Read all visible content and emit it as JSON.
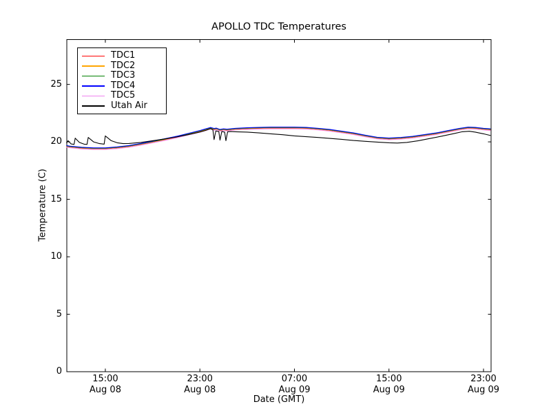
{
  "chart_data": {
    "type": "line",
    "title": "APOLLO TDC Temperatures",
    "xlabel": "Date (GMT)",
    "ylabel": "Temperature (C)",
    "grid": false,
    "legend_position": "upper left",
    "background_color": "#ffffff",
    "axis_color": "#000000",
    "x_unit": "hours since Aug 08 12:00 GMT",
    "xlim": [
      -0.26,
      35.64
    ],
    "ylim": [
      0,
      28.9
    ],
    "y_ticks": [
      0,
      5,
      10,
      15,
      20,
      25
    ],
    "x_ticks": [
      {
        "pos": 3,
        "time": "15:00",
        "date": "Aug 08"
      },
      {
        "pos": 11,
        "time": "23:00",
        "date": "Aug 08"
      },
      {
        "pos": 19,
        "time": "07:00",
        "date": "Aug 09"
      },
      {
        "pos": 27,
        "time": "15:00",
        "date": "Aug 09"
      },
      {
        "pos": 35,
        "time": "23:00",
        "date": "Aug 09"
      }
    ],
    "x": [
      -0.3,
      0,
      1,
      2,
      3,
      4,
      5,
      6,
      7,
      8,
      9,
      10,
      11,
      11.5,
      11.9,
      12.2,
      12.4,
      12.7,
      13,
      13.3,
      14,
      15,
      16,
      17,
      18,
      19,
      20,
      21,
      22,
      23,
      24,
      25,
      26,
      27,
      28,
      29,
      30,
      31,
      32,
      33,
      33.7,
      34.3,
      35,
      35.6
    ],
    "series": [
      {
        "name": "TDC1",
        "color": "#ff0000",
        "values": [
          19.6,
          19.55,
          19.45,
          19.4,
          19.4,
          19.48,
          19.6,
          19.78,
          19.98,
          20.18,
          20.4,
          20.65,
          20.9,
          21.05,
          21.18,
          21.08,
          21.12,
          21.0,
          21.05,
          21.02,
          21.1,
          21.15,
          21.18,
          21.2,
          21.2,
          21.2,
          21.18,
          21.1,
          21.0,
          20.85,
          20.7,
          20.5,
          20.32,
          20.25,
          20.3,
          20.4,
          20.55,
          20.7,
          20.9,
          21.1,
          21.2,
          21.18,
          21.1,
          21.05
        ]
      },
      {
        "name": "TDC2",
        "color": "#ffa500",
        "values": [
          19.62,
          19.57,
          19.47,
          19.42,
          19.42,
          19.5,
          19.62,
          19.8,
          20.0,
          20.2,
          20.42,
          20.67,
          20.92,
          21.07,
          21.2,
          21.1,
          21.14,
          21.02,
          21.07,
          21.04,
          21.12,
          21.17,
          21.2,
          21.22,
          21.22,
          21.22,
          21.2,
          21.12,
          21.02,
          20.87,
          20.72,
          20.52,
          20.34,
          20.27,
          20.32,
          20.42,
          20.57,
          20.72,
          20.92,
          21.12,
          21.22,
          21.2,
          21.12,
          21.07
        ]
      },
      {
        "name": "TDC3",
        "color": "#008000",
        "values": [
          19.65,
          19.6,
          19.5,
          19.45,
          19.45,
          19.53,
          19.65,
          19.83,
          20.03,
          20.23,
          20.45,
          20.7,
          20.95,
          21.1,
          21.23,
          21.13,
          21.17,
          21.05,
          21.1,
          21.07,
          21.15,
          21.2,
          21.23,
          21.25,
          21.25,
          21.25,
          21.23,
          21.15,
          21.05,
          20.9,
          20.75,
          20.55,
          20.37,
          20.3,
          20.35,
          20.45,
          20.6,
          20.75,
          20.95,
          21.15,
          21.25,
          21.23,
          21.15,
          21.1
        ]
      },
      {
        "name": "TDC4",
        "color": "#0000ff",
        "values": [
          19.68,
          19.63,
          19.53,
          19.48,
          19.48,
          19.56,
          19.68,
          19.86,
          20.06,
          20.26,
          20.48,
          20.73,
          20.98,
          21.13,
          21.26,
          21.16,
          21.2,
          21.08,
          21.13,
          21.1,
          21.18,
          21.23,
          21.26,
          21.28,
          21.28,
          21.28,
          21.26,
          21.18,
          21.08,
          20.93,
          20.78,
          20.58,
          20.4,
          20.33,
          20.38,
          20.48,
          20.63,
          20.78,
          20.98,
          21.18,
          21.28,
          21.26,
          21.18,
          21.13
        ]
      },
      {
        "name": "TDC5",
        "color": "#ee82ee",
        "values": [
          19.54,
          19.49,
          19.39,
          19.34,
          19.34,
          19.42,
          19.54,
          19.72,
          19.92,
          20.12,
          20.34,
          20.59,
          20.84,
          20.99,
          21.12,
          21.02,
          21.06,
          20.94,
          20.99,
          20.96,
          21.04,
          21.09,
          21.12,
          21.14,
          21.14,
          21.14,
          21.12,
          21.04,
          20.94,
          20.79,
          20.64,
          20.44,
          20.26,
          20.19,
          20.24,
          20.34,
          20.49,
          20.64,
          20.84,
          21.04,
          21.14,
          21.12,
          21.04,
          20.99
        ]
      },
      {
        "name": "Utah Air",
        "color": "#000000",
        "x": [
          -0.3,
          -0.15,
          0.1,
          0.35,
          0.45,
          0.8,
          1.2,
          1.45,
          1.55,
          2.0,
          2.5,
          2.9,
          3.0,
          3.5,
          4.0,
          4.5,
          5,
          6,
          7,
          8,
          9,
          10,
          11,
          11.5,
          11.9,
          12.1,
          12.2,
          12.35,
          12.6,
          12.7,
          12.85,
          13.1,
          13.2,
          13.35,
          13.6,
          14,
          15,
          16,
          17,
          18,
          19,
          20,
          21,
          22,
          23,
          24,
          25,
          26,
          27,
          27.7,
          28.5,
          29.5,
          30.5,
          31.5,
          32.5,
          33.2,
          33.8,
          34.3,
          35,
          35.6
        ],
        "values": [
          19.9,
          20.1,
          19.82,
          19.78,
          20.32,
          19.95,
          19.8,
          19.78,
          20.38,
          20.0,
          19.85,
          19.8,
          20.52,
          20.1,
          19.92,
          19.85,
          19.86,
          19.95,
          20.1,
          20.25,
          20.42,
          20.62,
          20.85,
          21.0,
          21.15,
          21.05,
          20.2,
          20.95,
          20.9,
          20.15,
          20.9,
          20.85,
          20.1,
          20.88,
          20.9,
          20.88,
          20.85,
          20.78,
          20.7,
          20.62,
          20.52,
          20.45,
          20.38,
          20.3,
          20.22,
          20.12,
          20.05,
          19.98,
          19.92,
          19.9,
          19.95,
          20.1,
          20.3,
          20.5,
          20.72,
          20.88,
          20.92,
          20.85,
          20.7,
          20.55
        ]
      }
    ]
  }
}
